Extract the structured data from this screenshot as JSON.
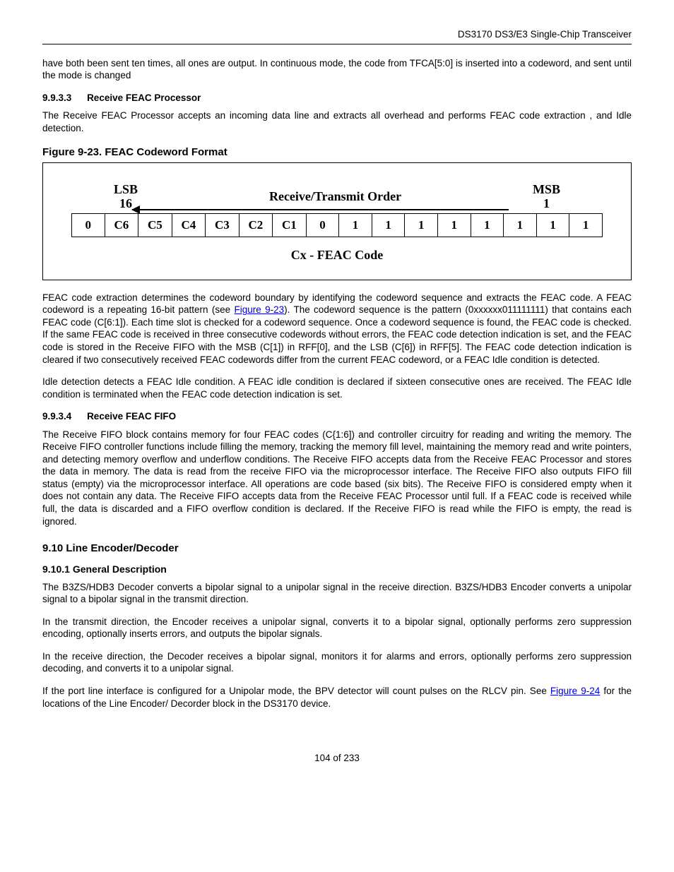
{
  "header": {
    "right": "DS3170 DS3/E3 Single-Chip Transceiver"
  },
  "intro_para": "have both been sent ten times, all ones are output. In continuous mode, the code from TFCA[5:0] is inserted into a codeword, and sent until the mode is changed",
  "sec_9933": {
    "num": "9.9.3.3",
    "title": "Receive FEAC Processor"
  },
  "para_9933": "The Receive FEAC Processor accepts an incoming data line and extracts all overhead and performs FEAC code extraction , and Idle detection.",
  "figure": {
    "title": "Figure 9-23. FEAC Codeword Format",
    "lsb_label": "LSB",
    "lsb_num": "16",
    "mid_label": "Receive/Transmit Order",
    "msb_label": "MSB",
    "msb_num": "1",
    "bits": [
      "0",
      "C6",
      "C5",
      "C4",
      "C3",
      "C2",
      "C1",
      "0",
      "1",
      "1",
      "1",
      "1",
      "1",
      "1",
      "1",
      "1"
    ],
    "cx_label": "Cx - FEAC Code"
  },
  "para_feac_extract_a": "FEAC code extraction determines the codeword boundary by identifying the codeword sequence and extracts the FEAC code. A FEAC codeword is a repeating 16-bit pattern (see ",
  "figref_923": "Figure 9-23",
  "para_feac_extract_b": "). The codeword sequence is the pattern (0xxxxxx011111111) that contains each FEAC code (C[6:1]). Each time slot is checked for a codeword sequence. Once a codeword sequence is found, the FEAC code is checked. If the same FEAC code is received in three consecutive codewords without errors, the FEAC code detection indication is set, and the FEAC code is stored in the Receive FIFO with the MSB (C[1]) in RFF[0], and the LSB (C[6]) in RFF[5]. The FEAC code detection indication is cleared if two consecutively received FEAC codewords differ from the current FEAC codeword, or a FEAC Idle condition is detected.",
  "para_idle": "Idle detection detects a FEAC Idle condition. A FEAC idle condition is declared if sixteen consecutive ones are received. The FEAC Idle condition is terminated when the FEAC code detection indication is set.",
  "sec_9934": {
    "num": "9.9.3.4",
    "title": "Receive FEAC FIFO"
  },
  "para_9934": "The Receive FIFO block contains memory for four FEAC codes (C{1:6]) and controller circuitry for reading and writing the memory. The Receive FIFO controller functions include filling the memory, tracking the memory fill level, maintaining the memory read and write pointers, and detecting memory overflow and underflow conditions. The Receive FIFO accepts data from the Receive FEAC Processor and stores the data in memory. The data is read from the receive FIFO via the microprocessor interface. The Receive FIFO also outputs FIFO fill status (empty) via the microprocessor interface. All operations are code based (six bits). The Receive FIFO is considered empty when it does not contain any data. The Receive FIFO accepts data from the Receive FEAC Processor until full. If a FEAC code is received while full, the data is discarded and a FIFO overflow condition is declared. If the Receive FIFO is read while the FIFO is empty, the read is ignored.",
  "sec_910": {
    "title": "9.10  Line Encoder/Decoder"
  },
  "sec_9101": {
    "title": "9.10.1  General Description"
  },
  "para_9101a": "The B3ZS/HDB3 Decoder converts a bipolar signal to a unipolar signal in the receive direction. B3ZS/HDB3 Encoder converts a unipolar signal to a bipolar signal in the transmit direction.",
  "para_9101b": "In the transmit direction, the Encoder receives a unipolar signal, converts it to a bipolar signal, optionally performs zero suppression encoding, optionally inserts errors, and outputs the bipolar signals.",
  "para_9101c": "In the receive direction, the Decoder receives a bipolar signal, monitors it for alarms and errors, optionally performs zero suppression decoding, and converts it to a unipolar signal.",
  "para_9101d_a": "If the port line interface is configured for a Unipolar mode, the BPV detector will count pulses on the RLCV pin. See ",
  "figref_924": "Figure 9-24",
  "para_9101d_b": " for the locations of the Line Encoder/ Decorder block in the DS3170 device.",
  "footer": "104 of 233"
}
